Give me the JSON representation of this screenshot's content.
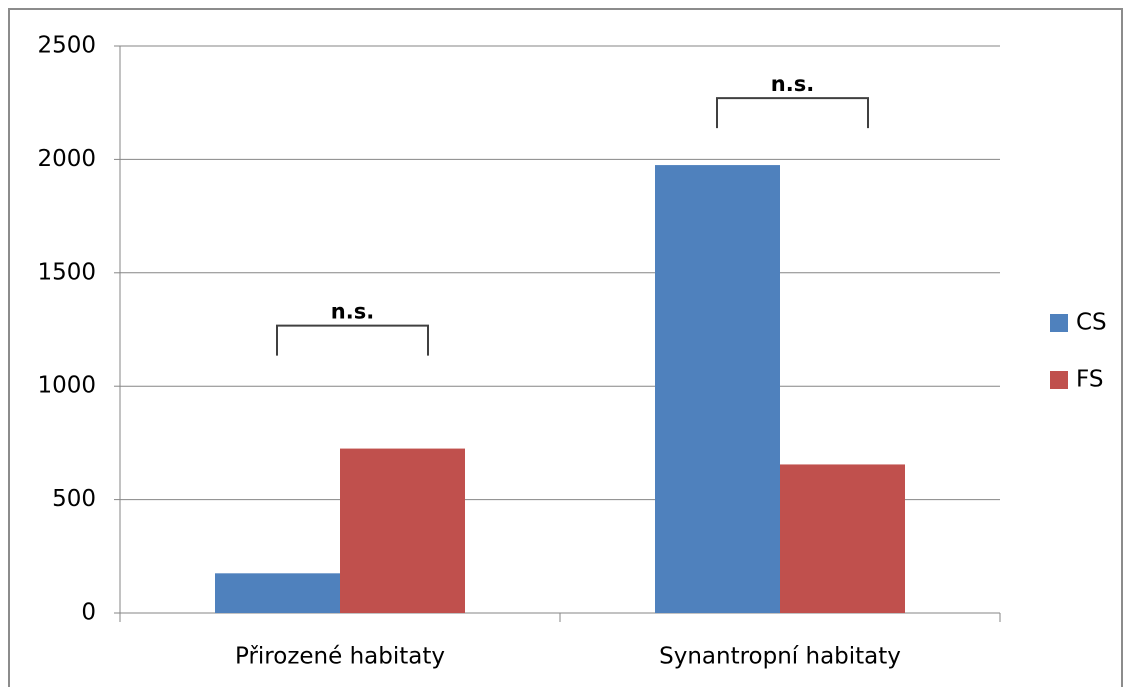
{
  "chart_data": {
    "type": "bar",
    "categories": [
      "Přirozené habitaty",
      "Synantropní habitaty"
    ],
    "series": [
      {
        "name": "CS",
        "color": "#4f81bd",
        "values": [
          175,
          1975
        ]
      },
      {
        "name": "FS",
        "color": "#c0504d",
        "values": [
          725,
          655
        ]
      }
    ],
    "annotations": [
      "n.s.",
      "n.s."
    ],
    "ylim": [
      0,
      2500
    ],
    "yticks": [
      0,
      500,
      1000,
      1500,
      2000,
      2500
    ],
    "grid": true,
    "legend": "right"
  }
}
